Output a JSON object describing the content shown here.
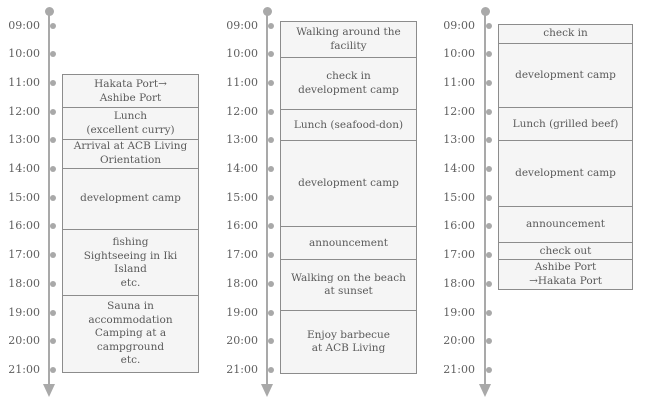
{
  "diagram": {
    "hour_labels": [
      "09:00",
      "10:00",
      "11:00",
      "12:00",
      "13:00",
      "14:00",
      "15:00",
      "16:00",
      "17:00",
      "18:00",
      "19:00",
      "20:00",
      "21:00"
    ],
    "colors": {
      "axis": "#a9a9a9",
      "box_border": "#8c8c8c",
      "box_fill": "#f5f5f5",
      "text": "#5a5a5a",
      "tick_text": "#5f5f5f"
    },
    "columns": [
      {
        "id": "timeline-column-1",
        "events": [
          {
            "lines": [
              "Hakata Port→",
              "Ashibe Port"
            ],
            "start": 10.7,
            "end": 11.85
          },
          {
            "lines": [
              "Lunch",
              "(excellent curry)"
            ],
            "start": 11.85,
            "end": 12.95
          },
          {
            "lines": [
              "Arrival at ACB Living",
              "Orientation"
            ],
            "start": 12.95,
            "end": 13.95
          },
          {
            "lines": [
              "development camp"
            ],
            "start": 13.95,
            "end": 16.1
          },
          {
            "lines": [
              "fishing",
              "Sightseeing in Iki",
              "Island",
              "etc."
            ],
            "start": 16.1,
            "end": 18.4
          },
          {
            "lines": [
              "Sauna in",
              "accommodation",
              "Camping at a",
              "campground",
              "etc."
            ],
            "start": 18.4,
            "end": 21.05
          }
        ]
      },
      {
        "id": "timeline-column-2",
        "events": [
          {
            "lines": [
              "Walking around the",
              "facility"
            ],
            "start": 8.85,
            "end": 10.1
          },
          {
            "lines": [
              "check in",
              "development camp"
            ],
            "start": 10.1,
            "end": 11.9
          },
          {
            "lines": [
              "Lunch (seafood-don)"
            ],
            "start": 11.9,
            "end": 13.0
          },
          {
            "lines": [
              "development camp"
            ],
            "start": 13.0,
            "end": 16.0
          },
          {
            "lines": [
              "announcement"
            ],
            "start": 16.0,
            "end": 17.15
          },
          {
            "lines": [
              "Walking on the beach",
              "at sunset"
            ],
            "start": 17.15,
            "end": 18.9
          },
          {
            "lines": [
              "Enjoy barbecue",
              "at ACB Living"
            ],
            "start": 18.9,
            "end": 21.1
          }
        ]
      },
      {
        "id": "timeline-column-3",
        "events": [
          {
            "lines": [
              "check in"
            ],
            "start": 8.95,
            "end": 9.6
          },
          {
            "lines": [
              "development camp"
            ],
            "start": 9.6,
            "end": 11.85
          },
          {
            "lines": [
              "Lunch (grilled beef)"
            ],
            "start": 11.85,
            "end": 13.0
          },
          {
            "lines": [
              "development camp"
            ],
            "start": 13.0,
            "end": 15.3
          },
          {
            "lines": [
              "announcement"
            ],
            "start": 15.3,
            "end": 16.55
          },
          {
            "lines": [
              "check out"
            ],
            "start": 16.55,
            "end": 17.15
          },
          {
            "lines": [
              "Ashibe Port",
              "→Hakata Port"
            ],
            "start": 17.15,
            "end": 18.15
          }
        ]
      }
    ]
  }
}
